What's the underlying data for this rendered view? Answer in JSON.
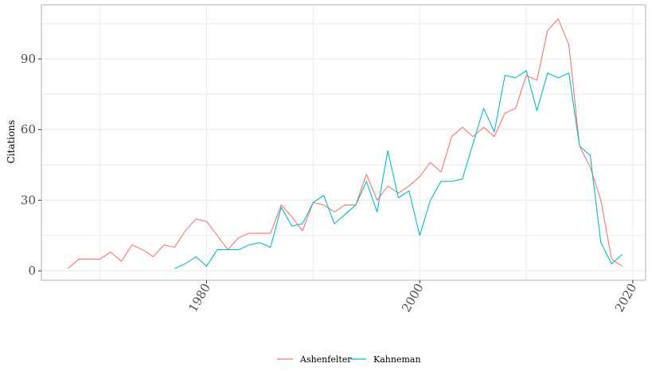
{
  "chart_data": {
    "type": "line",
    "title": "",
    "xlabel": "",
    "ylabel": "Citations",
    "xlim": [
      1964.5,
      2021.2
    ],
    "ylim": [
      -4,
      113
    ],
    "x_ticks": [
      1980,
      2000,
      2020
    ],
    "y_ticks": [
      0,
      30,
      60,
      90
    ],
    "grid": true,
    "legend_position": "bottom",
    "series": [
      {
        "name": "Ashenfelter",
        "color": "#F8766D",
        "x": [
          1967,
          1968,
          1969,
          1970,
          1971,
          1972,
          1973,
          1974,
          1975,
          1976,
          1977,
          1978,
          1979,
          1980,
          1981,
          1982,
          1983,
          1984,
          1985,
          1986,
          1987,
          1988,
          1989,
          1990,
          1991,
          1992,
          1993,
          1994,
          1995,
          1996,
          1997,
          1998,
          1999,
          2000,
          2001,
          2002,
          2003,
          2004,
          2005,
          2006,
          2007,
          2008,
          2009,
          2010,
          2011,
          2012,
          2013,
          2014,
          2015,
          2016,
          2017,
          2018,
          2019
        ],
        "y": [
          1,
          5,
          5,
          5,
          8,
          4,
          11,
          9,
          6,
          11,
          10,
          17,
          22,
          21,
          15,
          9,
          14,
          16,
          16,
          16,
          28,
          23,
          17,
          29,
          28,
          25,
          28,
          28,
          41,
          30,
          36,
          33,
          36,
          40,
          46,
          42,
          57,
          61,
          57,
          61,
          57,
          67,
          69,
          83,
          81,
          102,
          107,
          96,
          53,
          44,
          30,
          5,
          2
        ]
      },
      {
        "name": "Kahneman",
        "color": "#00BFC4",
        "x": [
          1977,
          1978,
          1979,
          1980,
          1981,
          1982,
          1983,
          1984,
          1985,
          1986,
          1987,
          1988,
          1989,
          1990,
          1991,
          1992,
          1993,
          1994,
          1995,
          1996,
          1997,
          1998,
          1999,
          2000,
          2001,
          2002,
          2003,
          2004,
          2005,
          2006,
          2007,
          2008,
          2009,
          2010,
          2011,
          2012,
          2013,
          2014,
          2015,
          2016,
          2017,
          2018,
          2019
        ],
        "y": [
          1,
          3,
          6,
          2,
          9,
          9,
          9,
          11,
          12,
          10,
          27,
          19,
          20,
          29,
          32,
          20,
          24,
          28,
          38,
          25,
          51,
          31,
          34,
          15,
          30,
          38,
          38,
          39,
          54,
          69,
          59,
          83,
          82,
          85,
          68,
          84,
          82,
          84,
          53,
          49,
          12,
          3,
          7
        ]
      }
    ]
  }
}
